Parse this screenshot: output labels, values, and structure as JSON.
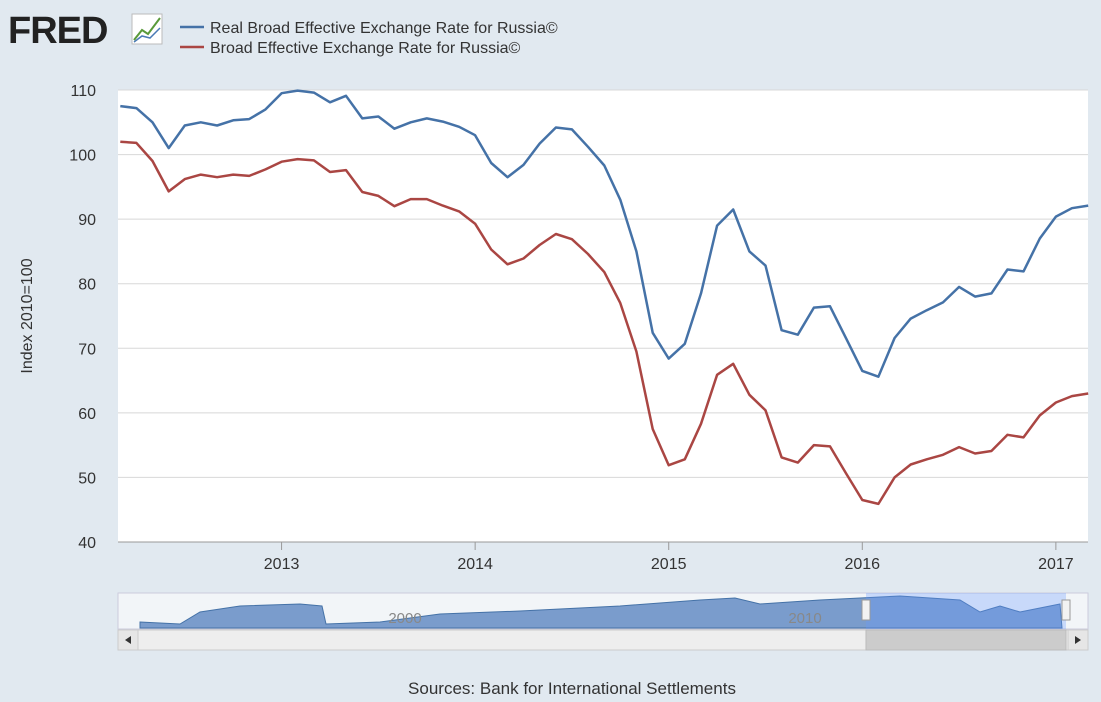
{
  "logo": "FRED",
  "chart_data": {
    "type": "line",
    "y_label": "Index 2010=100",
    "source": "Sources: Bank for International Settlements",
    "x": [
      2012.167,
      2012.25,
      2012.333,
      2012.417,
      2012.5,
      2012.583,
      2012.667,
      2012.75,
      2012.833,
      2012.917,
      2013,
      2013.083,
      2013.167,
      2013.25,
      2013.333,
      2013.417,
      2013.5,
      2013.583,
      2013.667,
      2013.75,
      2013.833,
      2013.917,
      2014,
      2014.083,
      2014.167,
      2014.25,
      2014.333,
      2014.417,
      2014.5,
      2014.583,
      2014.667,
      2014.75,
      2014.833,
      2014.917,
      2015,
      2015.083,
      2015.167,
      2015.25,
      2015.333,
      2015.417,
      2015.5,
      2015.583,
      2015.667,
      2015.75,
      2015.833,
      2015.917,
      2016,
      2016.083,
      2016.167,
      2016.25,
      2016.333,
      2016.417,
      2016.5,
      2016.583,
      2016.667,
      2016.75,
      2016.833,
      2016.917,
      2017,
      2017.083,
      2017.167
    ],
    "series": [
      {
        "name": "Real Broad Effective Exchange Rate for Russia©",
        "color": "#4572a7",
        "values": [
          107.5,
          107.2,
          105,
          101,
          104.5,
          105,
          104.5,
          105.3,
          105.5,
          107,
          109.5,
          109.9,
          109.6,
          108.1,
          109.1,
          105.6,
          105.9,
          104,
          105,
          105.6,
          105.1,
          104.3,
          103,
          98.7,
          96.5,
          98.4,
          101.7,
          104.2,
          103.9,
          101.2,
          98.3,
          93,
          85,
          72.4,
          68.4,
          70.7,
          78.5,
          89,
          91.5,
          85,
          82.8,
          72.8,
          72.1,
          76.3,
          76.5,
          71.5,
          66.5,
          65.6,
          71.6,
          74.6,
          75.9,
          77.1,
          79.5,
          78,
          78.5,
          82.2,
          81.9,
          87,
          90.4,
          91.7,
          92.1
        ]
      },
      {
        "name": "Broad Effective Exchange Rate for Russia©",
        "color": "#aa4643",
        "values": [
          102,
          101.8,
          99,
          94.3,
          96.2,
          96.9,
          96.5,
          96.9,
          96.7,
          97.7,
          98.9,
          99.3,
          99.1,
          97.3,
          97.6,
          94.2,
          93.6,
          92,
          93.1,
          93.1,
          92.1,
          91.2,
          89.3,
          85.3,
          83,
          83.9,
          86,
          87.7,
          86.9,
          84.6,
          81.8,
          77,
          69.5,
          57.5,
          51.9,
          52.8,
          58.3,
          65.9,
          67.6,
          62.8,
          60.4,
          53.1,
          52.3,
          55,
          54.8,
          50.6,
          46.5,
          45.9,
          50,
          52,
          52.8,
          53.5,
          54.7,
          53.7,
          54.1,
          56.6,
          56.2,
          59.6,
          61.6,
          62.6,
          63
        ]
      }
    ],
    "xlim": [
      2012.155,
      2017.166
    ],
    "xticks": [
      2013,
      2014,
      2015,
      2016,
      2017
    ],
    "ylim": [
      40,
      110
    ],
    "yticks": [
      40,
      50,
      60,
      70,
      80,
      90,
      100,
      110
    ],
    "grid": true,
    "navigator_labels": [
      "2000",
      "2010"
    ]
  }
}
